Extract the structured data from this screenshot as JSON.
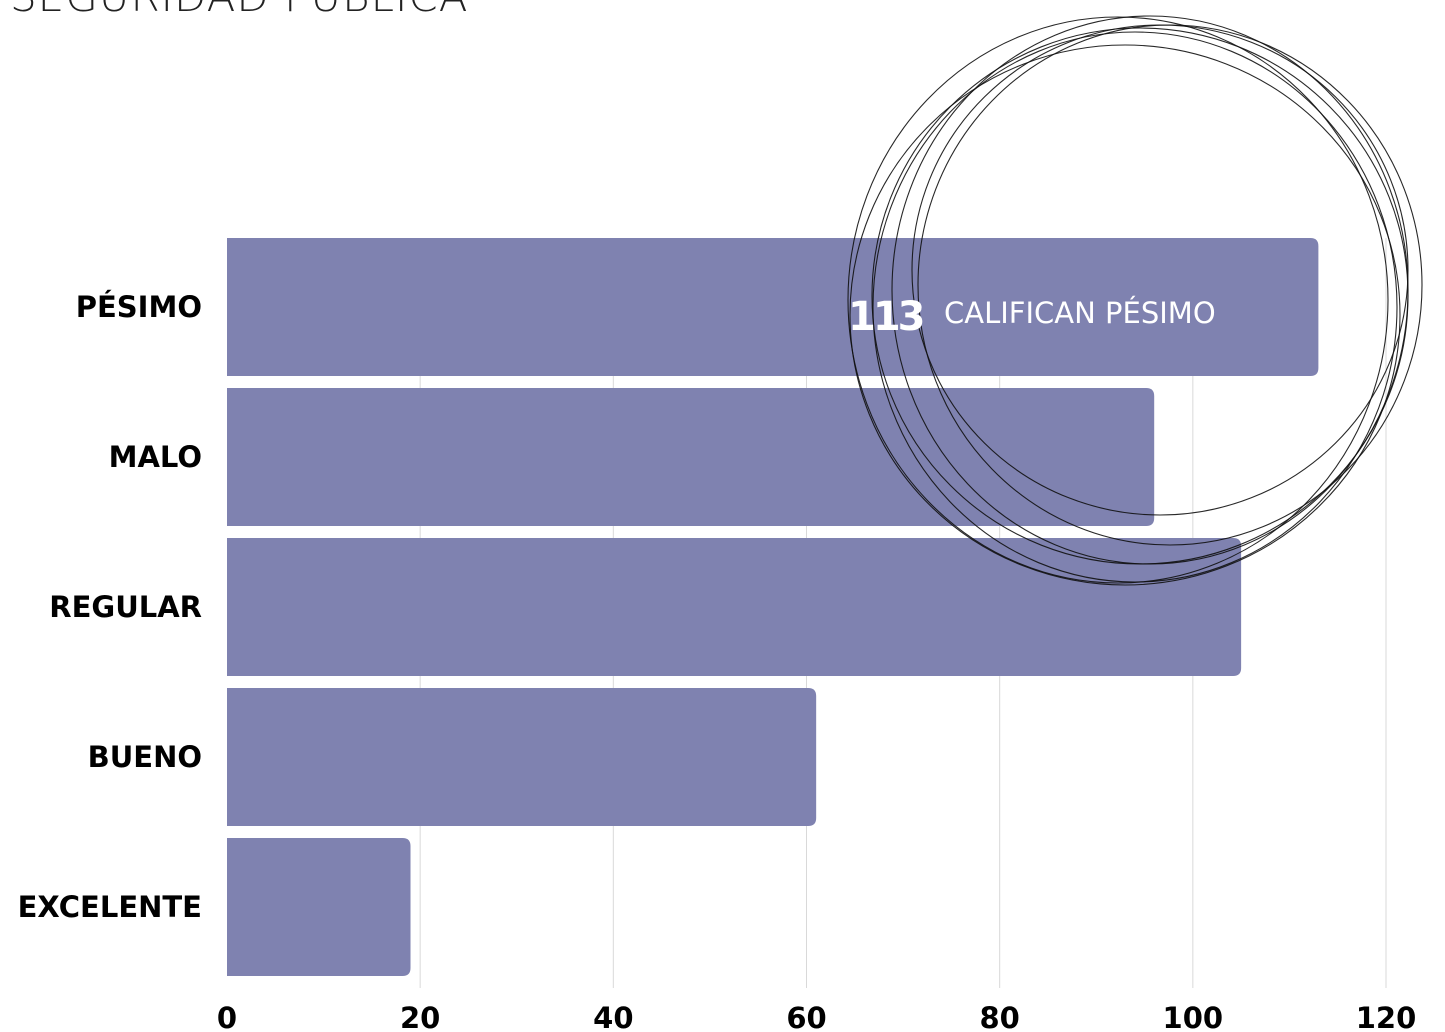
{
  "chart_data": {
    "type": "bar",
    "orientation": "horizontal",
    "title": "SEGURIDAD PÚBLICA",
    "categories": [
      "PÉSIMO",
      "MALO",
      "REGULAR",
      "BUENO",
      "EXCELENTE"
    ],
    "values": [
      113,
      96,
      105,
      61,
      19
    ],
    "x_ticks": [
      "0",
      "20",
      "40",
      "60",
      "80",
      "100",
      "120"
    ],
    "xlim": [
      0,
      120
    ],
    "grid": "vertical",
    "bar_color": "#7f82b0",
    "grid_color": "#d9d9d9",
    "annotation": {
      "category": "PÉSIMO",
      "number": "113",
      "text": "CALIFICAN PÉSIMO",
      "decoration": "overlapping-circles"
    }
  }
}
